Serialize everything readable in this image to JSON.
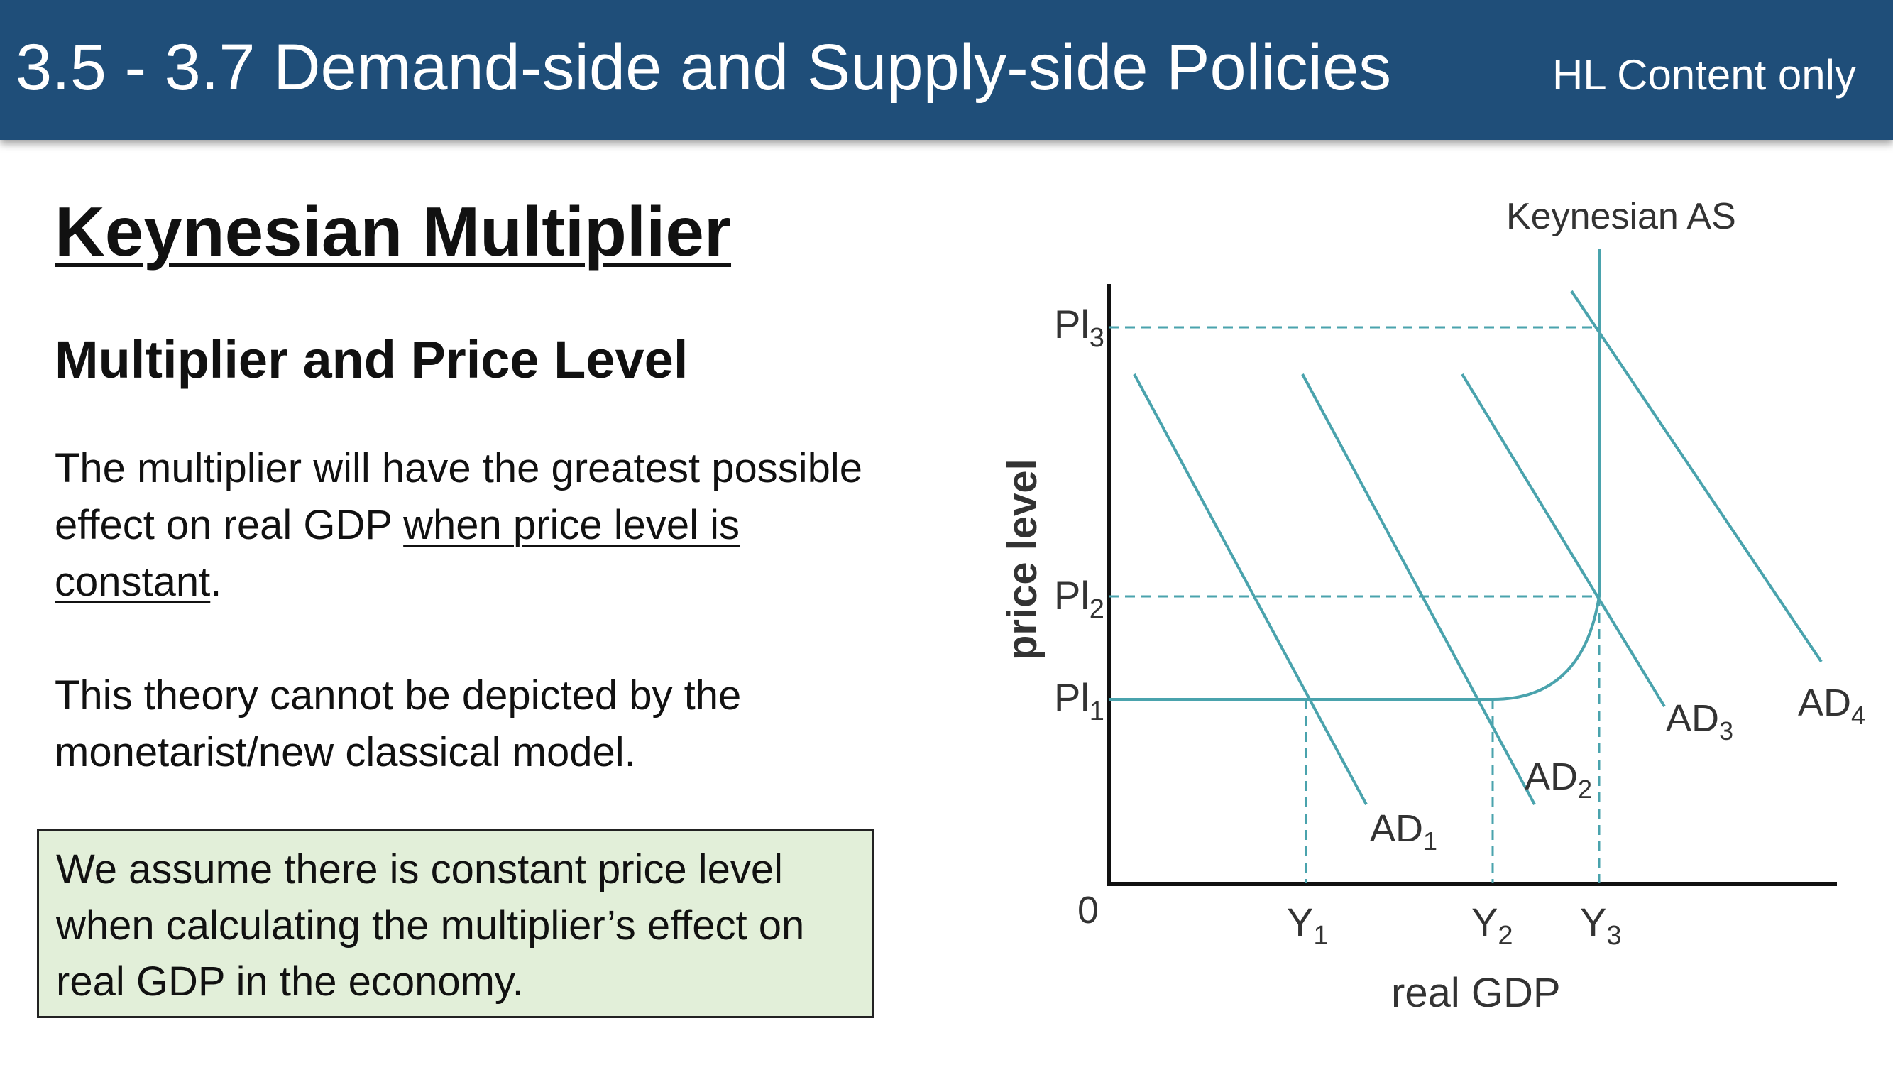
{
  "header": {
    "title": "3.5 - 3.7 Demand-side and Supply-side Policies",
    "tag": "HL Content only"
  },
  "content": {
    "heading": "Keynesian Multiplier",
    "subheading": "Multiplier and Price Level",
    "para1": {
      "before": "The multiplier will have the greatest possible effect on real GDP ",
      "underlined": "when price level is constant",
      "after": "."
    },
    "para2": "This theory cannot be depicted by the monetarist/new classical model.",
    "callout": "We assume there is constant price level when calculating the multiplier’s effect on real GDP in the economy."
  },
  "chart_data": {
    "type": "line",
    "title": "",
    "xlabel": "real GDP",
    "ylabel": "price level",
    "origin_label": "0",
    "supply_curve": {
      "name": "Keynesian AS",
      "description": "horizontal at Pl1 up to Y2, rising between Y2 and Y3, vertical at Y3"
    },
    "demand_curves": [
      {
        "name": "AD",
        "sub": "1"
      },
      {
        "name": "AD",
        "sub": "2"
      },
      {
        "name": "AD",
        "sub": "3"
      },
      {
        "name": "AD",
        "sub": "4"
      }
    ],
    "x_ticks": [
      {
        "name": "Y",
        "sub": "1"
      },
      {
        "name": "Y",
        "sub": "2"
      },
      {
        "name": "Y",
        "sub": "3"
      }
    ],
    "y_ticks": [
      {
        "name": "Pl",
        "sub": "1"
      },
      {
        "name": "Pl",
        "sub": "2"
      },
      {
        "name": "Pl",
        "sub": "3"
      }
    ],
    "equilibria": [
      {
        "ad": "AD1",
        "output": "Y1",
        "price": "Pl1"
      },
      {
        "ad": "AD2",
        "output": "Y2",
        "price": "Pl1"
      },
      {
        "ad": "AD3",
        "output": "Y3",
        "price": "Pl2"
      },
      {
        "ad": "AD4",
        "output": "Y3",
        "price": "Pl3"
      }
    ],
    "colors": {
      "curve": "#4aa3ad",
      "axis": "#111111",
      "label": "#333333"
    }
  }
}
